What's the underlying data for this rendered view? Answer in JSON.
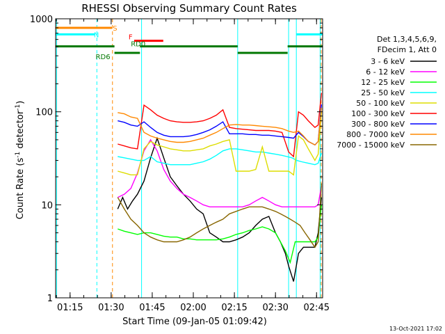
{
  "chart_data": {
    "type": "line",
    "title": "RHESSI Observing Summary Count Rates",
    "xlabel": "Start Time (09-Jan-05 01:09:42)",
    "ylabel_main": "Count Rate (s",
    "ylabel_sup1": "-1",
    "ylabel_mid": " detector",
    "ylabel_sup2": "-1",
    "ylabel_end": ")",
    "y_scale": "log",
    "ylim": [
      1,
      1000
    ],
    "xlim": [
      1.162,
      2.787
    ],
    "y_ticks": [
      {
        "value": 1,
        "label": "1"
      },
      {
        "value": 10,
        "label": "10"
      },
      {
        "value": 100,
        "label": "100"
      },
      {
        "value": 1000,
        "label": "1000"
      }
    ],
    "x_ticks": [
      {
        "value": 1.25,
        "label": "01:15"
      },
      {
        "value": 1.5,
        "label": "01:30"
      },
      {
        "value": 1.75,
        "label": "01:45"
      },
      {
        "value": 2.0,
        "label": "02:00"
      },
      {
        "value": 2.25,
        "label": "02:15"
      },
      {
        "value": 2.5,
        "label": "02:30"
      },
      {
        "value": 2.75,
        "label": "02:45"
      }
    ],
    "legend_header": [
      "Det 1,3,4,5,6,9,",
      "FDecim 1, Att 0"
    ],
    "legend_position": "right",
    "series": [
      {
        "name": "3 - 6 keV",
        "color": "#000000",
        "x": [
          1.54,
          1.57,
          1.6,
          1.63,
          1.66,
          1.7,
          1.74,
          1.78,
          1.82,
          1.86,
          1.9,
          1.94,
          1.98,
          2.02,
          2.06,
          2.1,
          2.14,
          2.18,
          2.22,
          2.26,
          2.3,
          2.34,
          2.38,
          2.42,
          2.46,
          2.5,
          2.53,
          2.56,
          2.58,
          2.61,
          2.64,
          2.67,
          2.7,
          2.74,
          2.76,
          2.78
        ],
        "y": [
          9,
          12,
          9,
          11,
          13,
          18,
          32,
          52,
          32,
          20,
          16,
          13,
          11,
          9,
          8,
          5,
          4.5,
          4,
          4,
          4.2,
          4.5,
          5,
          6,
          7,
          7.5,
          5,
          4,
          3,
          2.2,
          1.5,
          3,
          3.5,
          3.5,
          3.5,
          5,
          12
        ]
      },
      {
        "name": "6 - 12 keV",
        "color": "#ff00ff",
        "x": [
          1.54,
          1.58,
          1.62,
          1.66,
          1.7,
          1.74,
          1.78,
          1.82,
          1.86,
          1.9,
          1.94,
          1.98,
          2.02,
          2.06,
          2.1,
          2.14,
          2.18,
          2.22,
          2.26,
          2.3,
          2.34,
          2.38,
          2.42,
          2.46,
          2.5,
          2.54,
          2.58,
          2.62,
          2.66,
          2.7,
          2.74,
          2.76,
          2.78
        ],
        "y": [
          12,
          13,
          15,
          22,
          38,
          50,
          38,
          24,
          18,
          15,
          13,
          12,
          11,
          10,
          9.5,
          9.5,
          9.5,
          9.5,
          9.5,
          9.5,
          10,
          11,
          12,
          11,
          10,
          9.5,
          9.5,
          9.5,
          9.5,
          9.5,
          9.5,
          10,
          16
        ]
      },
      {
        "name": "12 - 25 keV",
        "color": "#00ff00",
        "x": [
          1.54,
          1.58,
          1.62,
          1.66,
          1.7,
          1.74,
          1.78,
          1.82,
          1.86,
          1.9,
          1.94,
          1.98,
          2.02,
          2.06,
          2.1,
          2.14,
          2.18,
          2.22,
          2.26,
          2.3,
          2.34,
          2.38,
          2.42,
          2.46,
          2.5,
          2.53,
          2.56,
          2.59,
          2.62,
          2.66,
          2.7,
          2.74,
          2.76,
          2.78
        ],
        "y": [
          5.5,
          5.2,
          5,
          4.8,
          5,
          5,
          4.8,
          4.6,
          4.5,
          4.5,
          4.3,
          4.3,
          4.2,
          4.2,
          4.2,
          4.2,
          4.3,
          4.5,
          4.8,
          5,
          5.3,
          5.5,
          5.8,
          5.5,
          5,
          4,
          3.2,
          2.4,
          4,
          4,
          4,
          4,
          4.5,
          10
        ]
      },
      {
        "name": "25 - 50 keV",
        "color": "#00ffff",
        "x": [
          1.54,
          1.58,
          1.62,
          1.66,
          1.7,
          1.74,
          1.78,
          1.82,
          1.86,
          1.9,
          1.94,
          1.98,
          2.02,
          2.06,
          2.1,
          2.14,
          2.18,
          2.22,
          2.26,
          2.3,
          2.34,
          2.38,
          2.42,
          2.46,
          2.5,
          2.54,
          2.57,
          2.6,
          2.63,
          2.66,
          2.7,
          2.74,
          2.76,
          2.78
        ],
        "y": [
          33,
          32,
          31,
          30,
          30,
          33,
          29,
          28,
          27,
          27,
          27,
          27,
          28,
          29,
          31,
          34,
          38,
          40,
          40,
          39,
          38,
          37,
          37,
          36,
          35,
          34,
          33,
          32,
          30,
          29,
          28,
          27,
          28,
          36
        ]
      },
      {
        "name": "50 - 100 keV",
        "color": "#dddd00",
        "x": [
          1.54,
          1.58,
          1.62,
          1.66,
          1.7,
          1.74,
          1.78,
          1.82,
          1.86,
          1.9,
          1.94,
          1.98,
          2.02,
          2.06,
          2.1,
          2.14,
          2.18,
          2.22,
          2.26,
          2.3,
          2.34,
          2.38,
          2.42,
          2.46,
          2.5,
          2.54,
          2.58,
          2.61,
          2.64,
          2.67,
          2.7,
          2.74,
          2.76,
          2.78
        ],
        "y": [
          23,
          22,
          21,
          21,
          40,
          48,
          44,
          42,
          40,
          39,
          38,
          38,
          39,
          40,
          43,
          45,
          48,
          50,
          23,
          23,
          23,
          24,
          42,
          23,
          23,
          23,
          23,
          21,
          55,
          50,
          40,
          30,
          35,
          100
        ]
      },
      {
        "name": "100 - 300 keV",
        "color": "#ff0000",
        "x": [
          1.54,
          1.58,
          1.62,
          1.66,
          1.7,
          1.74,
          1.78,
          1.82,
          1.86,
          1.9,
          1.94,
          1.98,
          2.02,
          2.06,
          2.1,
          2.14,
          2.18,
          2.22,
          2.26,
          2.3,
          2.34,
          2.38,
          2.42,
          2.46,
          2.5,
          2.54,
          2.58,
          2.61,
          2.64,
          2.67,
          2.7,
          2.74,
          2.76,
          2.78
        ],
        "y": [
          45,
          43,
          41,
          40,
          118,
          105,
          92,
          85,
          80,
          78,
          77,
          77,
          78,
          80,
          85,
          92,
          105,
          68,
          66,
          65,
          64,
          63,
          63,
          63,
          62,
          60,
          37,
          33,
          100,
          92,
          80,
          68,
          72,
          160
        ]
      },
      {
        "name": "300 - 800 keV",
        "color": "#0000ff",
        "x": [
          1.54,
          1.58,
          1.62,
          1.66,
          1.7,
          1.74,
          1.78,
          1.82,
          1.86,
          1.9,
          1.94,
          1.98,
          2.02,
          2.06,
          2.1,
          2.14,
          2.18,
          2.22,
          2.26,
          2.3,
          2.34,
          2.38,
          2.42,
          2.46,
          2.5,
          2.54,
          2.58,
          2.61,
          2.64,
          2.67,
          2.7,
          2.74,
          2.76,
          2.78
        ],
        "y": [
          80,
          77,
          72,
          70,
          78,
          68,
          60,
          56,
          54,
          54,
          54,
          55,
          57,
          60,
          64,
          70,
          78,
          58,
          58,
          58,
          57,
          57,
          56,
          56,
          55,
          54,
          53,
          52,
          60,
          54,
          48,
          44,
          48,
          120
        ]
      },
      {
        "name": "800 - 7000 keV",
        "color": "#ff8800",
        "x": [
          1.54,
          1.58,
          1.62,
          1.66,
          1.7,
          1.74,
          1.78,
          1.82,
          1.86,
          1.9,
          1.94,
          1.98,
          2.02,
          2.06,
          2.1,
          2.14,
          2.18,
          2.22,
          2.26,
          2.3,
          2.34,
          2.38,
          2.42,
          2.46,
          2.5,
          2.54,
          2.58,
          2.61,
          2.64,
          2.67,
          2.7,
          2.74,
          2.76,
          2.78
        ],
        "y": [
          98,
          95,
          88,
          85,
          60,
          55,
          52,
          50,
          48,
          47,
          47,
          48,
          50,
          52,
          56,
          60,
          66,
          72,
          73,
          72,
          72,
          71,
          70,
          69,
          68,
          66,
          62,
          60,
          62,
          55,
          48,
          44,
          48,
          110
        ]
      },
      {
        "name": "7000 - 15000 keV",
        "color": "#886600",
        "x": [
          1.54,
          1.58,
          1.62,
          1.66,
          1.7,
          1.74,
          1.78,
          1.82,
          1.86,
          1.9,
          1.94,
          1.98,
          2.02,
          2.06,
          2.1,
          2.14,
          2.18,
          2.22,
          2.26,
          2.3,
          2.34,
          2.38,
          2.42,
          2.46,
          2.5,
          2.53,
          2.56,
          2.59,
          2.62,
          2.65,
          2.68,
          2.71,
          2.74,
          2.76,
          2.78
        ],
        "y": [
          12,
          9,
          7,
          6,
          5,
          4.5,
          4.2,
          4,
          4,
          4,
          4.2,
          4.5,
          5,
          5.5,
          6,
          6.5,
          7,
          8,
          8.5,
          9,
          9.5,
          9.5,
          9.5,
          9,
          8.5,
          8,
          7.5,
          7,
          6.5,
          6,
          5,
          4.2,
          3.5,
          4,
          17
        ]
      }
    ],
    "attenuator_bars": [
      {
        "label": "S",
        "color": "#ff8800",
        "x0": 1.162,
        "x1": 1.505,
        "y": 800
      },
      {
        "label": "N",
        "color": "#00ffff",
        "x0": 1.162,
        "x1": 1.4,
        "y": 680
      },
      {
        "label": "N",
        "color": "#00ffff",
        "x0": 2.627,
        "x1": 2.787,
        "y": 680
      },
      {
        "label": "F",
        "color": "#ff0000",
        "x0": 1.64,
        "x1": 1.817,
        "y": 580
      },
      {
        "label": "RD0",
        "color": "#007700",
        "x0": 1.162,
        "x1": 1.52,
        "y": 505
      },
      {
        "label": "RD0",
        "color": "#007700",
        "x0": 1.675,
        "x1": 2.27,
        "y": 505
      },
      {
        "label": "RD0",
        "color": "#007700",
        "x0": 2.574,
        "x1": 2.787,
        "y": 505
      },
      {
        "label": "RD6",
        "color": "#007700",
        "x0": 1.52,
        "x1": 1.675,
        "y": 430
      },
      {
        "label": "RD6",
        "color": "#007700",
        "x0": 2.27,
        "x1": 2.574,
        "y": 430
      }
    ],
    "bar_labels": [
      {
        "text": "S",
        "color": "#ff8800"
      },
      {
        "text": "N",
        "color": "#00ffff"
      },
      {
        "text": "F",
        "color": "#ff0000"
      },
      {
        "text": "RD0",
        "color": "#007700"
      },
      {
        "text": "RD6",
        "color": "#007700"
      }
    ],
    "vertical_lines": [
      {
        "x": 1.168,
        "color": "#00ffff",
        "style": "solid"
      },
      {
        "x": 1.413,
        "color": "#00ffff",
        "style": "dashed"
      },
      {
        "x": 1.508,
        "color": "#ff8800",
        "style": "dashed"
      },
      {
        "x": 1.685,
        "color": "#00ffff",
        "style": "solid"
      },
      {
        "x": 2.27,
        "color": "#00ffff",
        "style": "solid"
      },
      {
        "x": 2.58,
        "color": "#00ffff",
        "style": "solid"
      },
      {
        "x": 2.627,
        "color": "#00ffff",
        "style": "solid"
      },
      {
        "x": 2.772,
        "color": "#00ffff",
        "style": "solid"
      },
      {
        "x": 2.778,
        "color": "#ff8800",
        "style": "dashed"
      }
    ],
    "footer_timestamp": "13-Oct-2021 17:02",
    "grid": false
  }
}
